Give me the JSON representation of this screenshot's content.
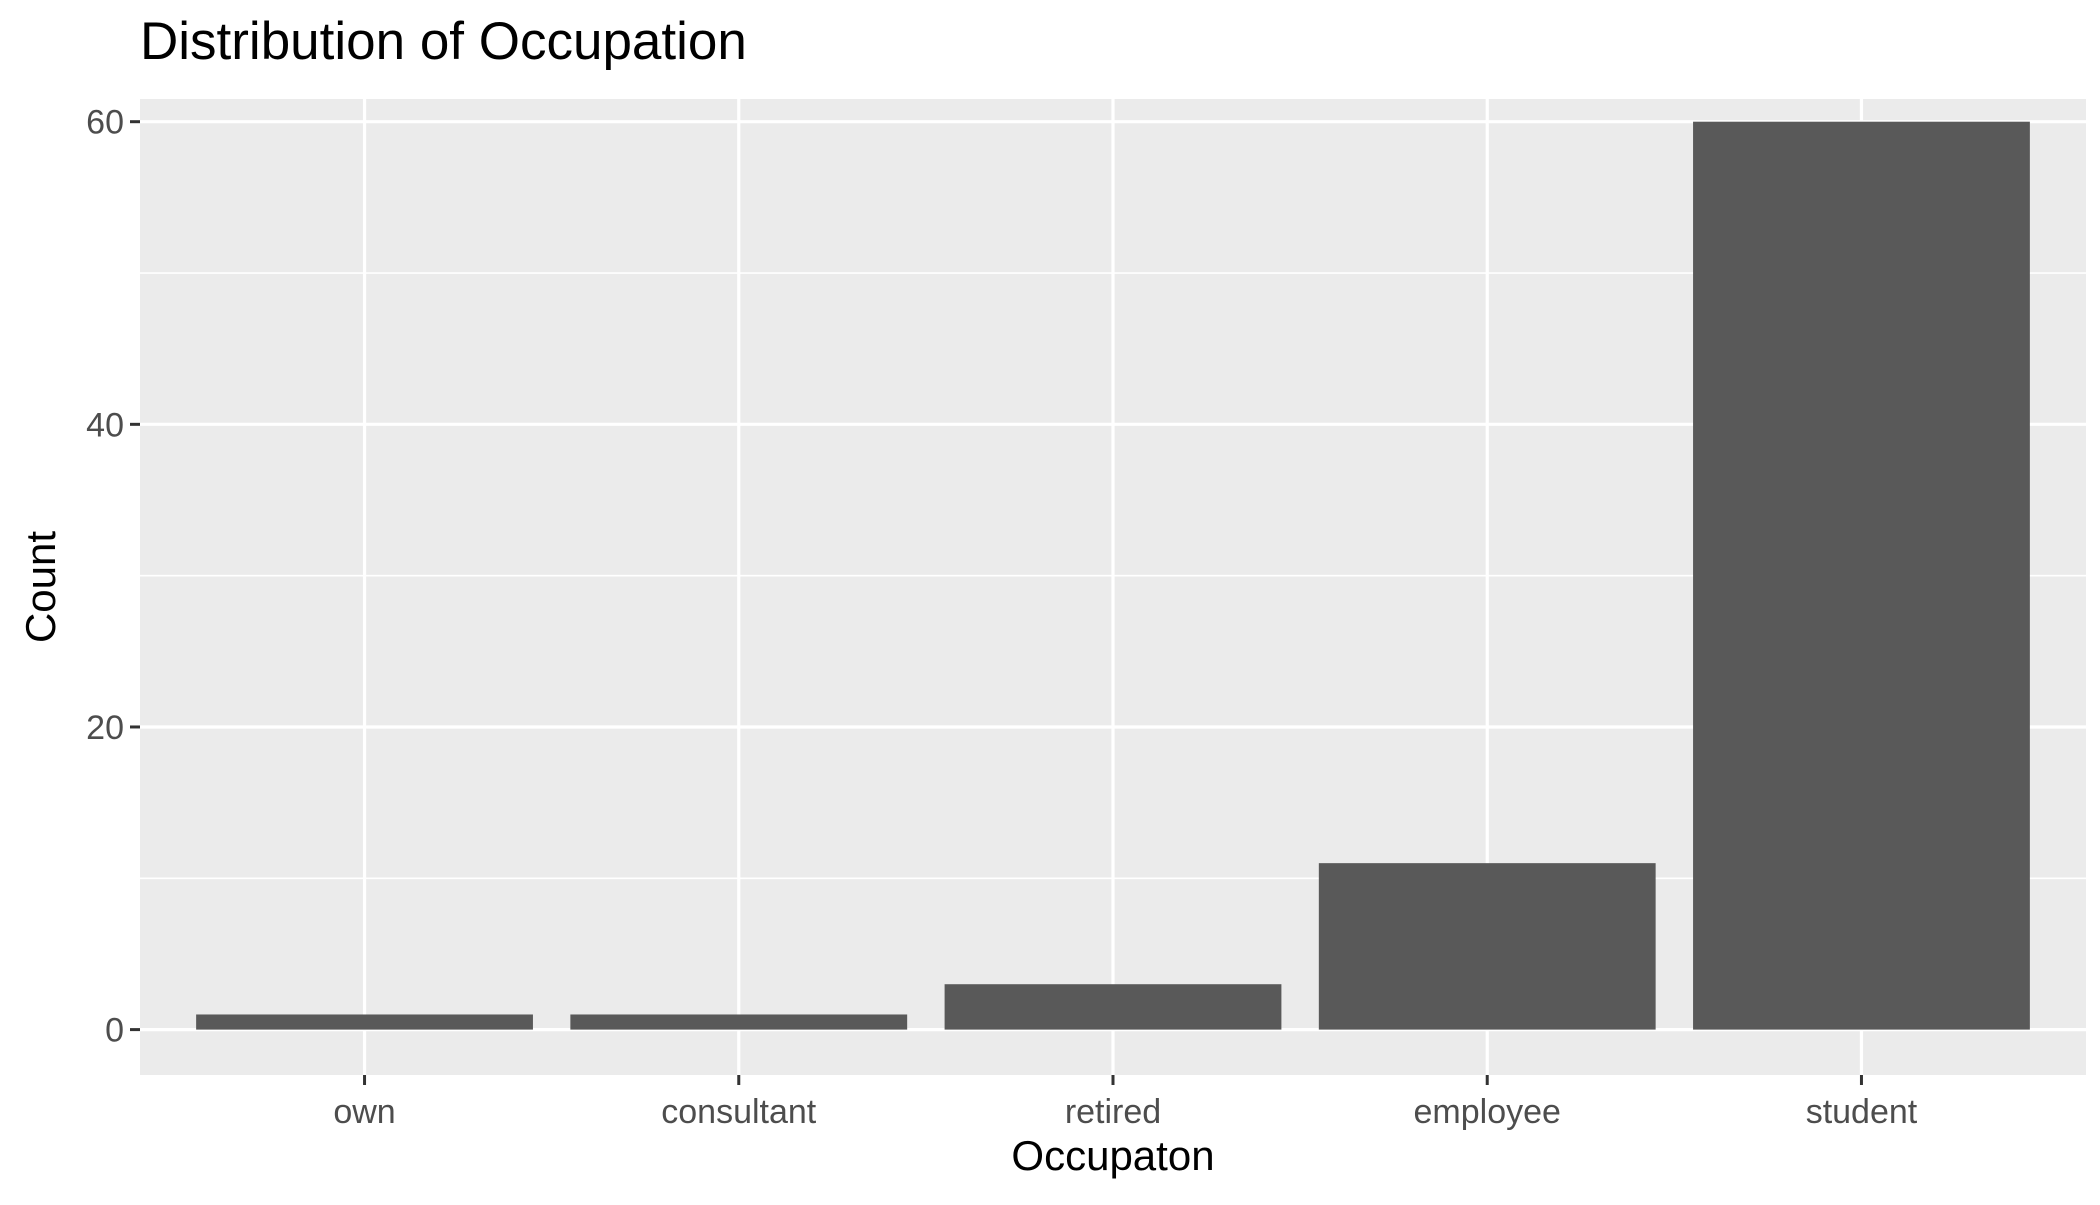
{
  "chart_data": {
    "type": "bar",
    "title": "Distribution of Occupation",
    "xlabel": "Occupaton",
    "ylabel": "Count",
    "categories": [
      "own",
      "consultant",
      "retired",
      "employee",
      "student"
    ],
    "values": [
      1,
      1,
      3,
      11,
      60
    ],
    "ylim": [
      -3,
      61.5
    ],
    "yticks": [
      0,
      20,
      40,
      60
    ],
    "grid": true,
    "colors": {
      "bar": "#595959",
      "panel": "#ebebeb",
      "grid": "#ffffff",
      "tick_text": "#4d4d4d",
      "tick_mark": "#333333",
      "text": "#000000"
    }
  }
}
